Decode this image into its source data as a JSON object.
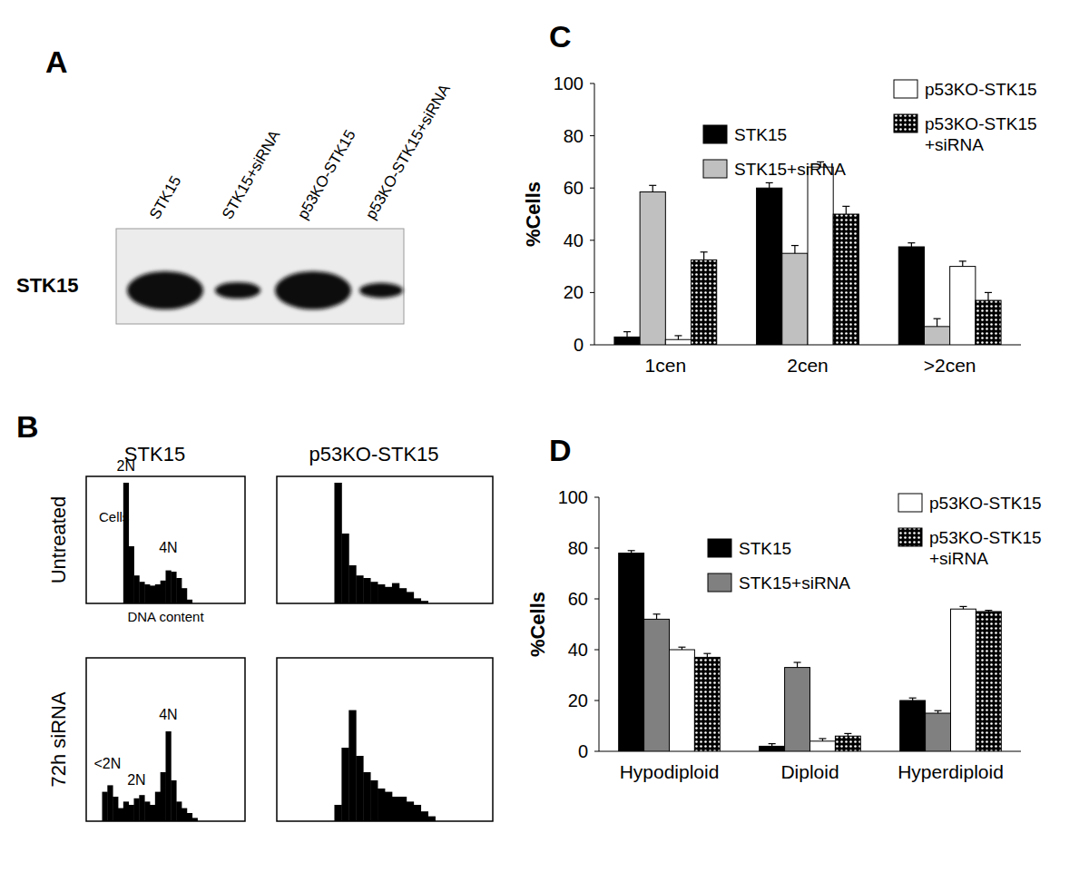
{
  "figure": {
    "panel_labels": [
      "A",
      "B",
      "C",
      "D"
    ],
    "blot": {
      "row_label": "STK15",
      "lanes": [
        {
          "label": "STK15",
          "intensity": 1
        },
        {
          "label": "STK15+siRNA",
          "intensity": 0.3
        },
        {
          "label": "p53KO-STK15",
          "intensity": 1
        },
        {
          "label": "p53KO-STK15+siRNA",
          "intensity": 0.25
        }
      ]
    },
    "flow": {
      "column_titles": [
        "STK15",
        "p53KO-STK15"
      ],
      "row_titles": [
        "Untreated",
        "72h siRNA"
      ]
    }
  },
  "chart_data": [
    {
      "type": "bar",
      "categories": [
        "1cen",
        "2cen",
        ">2cen"
      ],
      "y_label": "%Cells",
      "ylim": [
        0,
        100
      ],
      "yticks": [
        0,
        20,
        40,
        60,
        80,
        100
      ],
      "grid": false,
      "legend": "top",
      "series": [
        {
          "name": "STK15",
          "color": "#000000",
          "values": [
            3,
            60,
            37.5
          ],
          "errors": [
            2,
            2,
            1.5
          ]
        },
        {
          "name": "STK15+siRNA",
          "color": "#c0c0c0",
          "values": [
            58.5,
            35,
            7
          ],
          "errors": [
            2.5,
            3,
            3
          ]
        },
        {
          "name": "p53KO-STK15",
          "color": "#ffffff",
          "values": [
            2,
            68,
            30
          ],
          "errors": [
            1.5,
            2,
            2
          ]
        },
        {
          "name": "p53KO-STK15+siRNA",
          "color": "#000000",
          "marker": "dots",
          "values": [
            32.5,
            50,
            17
          ],
          "errors": [
            3,
            3,
            3
          ]
        }
      ]
    },
    {
      "type": "bar",
      "categories": [
        "Hypodiploid",
        "Diploid",
        "Hyperdiploid"
      ],
      "y_label": "%Cells",
      "ylim": [
        0,
        100
      ],
      "yticks": [
        0,
        20,
        40,
        60,
        80,
        100
      ],
      "grid": false,
      "legend": "top",
      "series": [
        {
          "name": "STK15",
          "color": "#000000",
          "values": [
            78,
            2,
            20
          ],
          "errors": [
            1,
            1,
            1
          ]
        },
        {
          "name": "STK15+siRNA",
          "color": "#808080",
          "values": [
            52,
            33,
            15
          ],
          "errors": [
            2,
            2,
            1
          ]
        },
        {
          "name": "p53KO-STK15",
          "color": "#ffffff",
          "values": [
            40,
            4,
            56
          ],
          "errors": [
            1,
            1,
            1
          ]
        },
        {
          "name": "p53KO-STK15+siRNA",
          "color": "#000000",
          "marker": "dots",
          "values": [
            37,
            6,
            55
          ],
          "errors": [
            1.5,
            1,
            0.5
          ]
        }
      ]
    },
    {
      "type": "histogram",
      "x_label": "DNA content",
      "y_label": "Cells",
      "bins": [
        0,
        1,
        2,
        3,
        4,
        5,
        6,
        7,
        8,
        9,
        10,
        11,
        12,
        13,
        14,
        15,
        16,
        17,
        18,
        19,
        20,
        21,
        22,
        23,
        24,
        25,
        26,
        27,
        28,
        29,
        30
      ],
      "values": [
        0,
        0,
        0,
        0,
        0,
        0,
        0,
        95,
        45,
        22,
        17,
        15,
        14,
        15,
        18,
        26,
        25,
        20,
        12,
        3,
        0,
        0,
        0,
        0,
        0,
        0,
        0,
        0,
        0,
        0
      ],
      "xlim": [
        0,
        30
      ],
      "ylim": [
        0,
        100
      ],
      "tick_labels": false,
      "color": "#000000",
      "annotations": [
        {
          "text": "2N",
          "x": 7.5,
          "y": 104
        },
        {
          "text": "4N",
          "x": 15.5,
          "y": 40
        }
      ]
    },
    {
      "type": "histogram",
      "bins": [
        0,
        1,
        2,
        3,
        4,
        5,
        6,
        7,
        8,
        9,
        10,
        11,
        12,
        13,
        14,
        15,
        16,
        17,
        18,
        19,
        20,
        21,
        22,
        23,
        24,
        25,
        26,
        27,
        28,
        29,
        30
      ],
      "values": [
        0,
        0,
        0,
        0,
        0,
        0,
        0,
        0,
        95,
        55,
        30,
        22,
        20,
        17,
        15,
        13,
        16,
        12,
        9,
        4,
        2,
        0,
        0,
        0,
        0,
        0,
        0,
        0,
        0,
        0
      ],
      "xlim": [
        0,
        30
      ],
      "ylim": [
        0,
        100
      ],
      "tick_labels": false,
      "color": "#000000"
    },
    {
      "type": "histogram",
      "bins": [
        0,
        1,
        2,
        3,
        4,
        5,
        6,
        7,
        8,
        9,
        10,
        11,
        12,
        13,
        14,
        15,
        16,
        17,
        18,
        19,
        20,
        21,
        22,
        23,
        24,
        25,
        26,
        27,
        28,
        29,
        30
      ],
      "values": [
        0,
        0,
        0,
        18,
        22,
        15,
        8,
        12,
        10,
        14,
        16,
        12,
        10,
        18,
        30,
        55,
        25,
        12,
        8,
        5,
        2,
        0,
        0,
        0,
        0,
        0,
        0,
        0,
        0,
        0
      ],
      "xlim": [
        0,
        30
      ],
      "ylim": [
        0,
        100
      ],
      "tick_labels": false,
      "color": "#000000",
      "annotations": [
        {
          "text": "<2N",
          "x": 4,
          "y": 32
        },
        {
          "text": "2N",
          "x": 9.5,
          "y": 22
        },
        {
          "text": "4N",
          "x": 15.5,
          "y": 62
        }
      ]
    },
    {
      "type": "histogram",
      "bins": [
        0,
        1,
        2,
        3,
        4,
        5,
        6,
        7,
        8,
        9,
        10,
        11,
        12,
        13,
        14,
        15,
        16,
        17,
        18,
        19,
        20,
        21,
        22,
        23,
        24,
        25,
        26,
        27,
        28,
        29,
        30
      ],
      "values": [
        0,
        0,
        0,
        0,
        0,
        0,
        0,
        0,
        10,
        45,
        68,
        40,
        30,
        25,
        20,
        18,
        15,
        15,
        12,
        10,
        6,
        3,
        0,
        0,
        0,
        0,
        0,
        0,
        0,
        0
      ],
      "xlim": [
        0,
        30
      ],
      "ylim": [
        0,
        100
      ],
      "tick_labels": false,
      "color": "#000000"
    }
  ]
}
